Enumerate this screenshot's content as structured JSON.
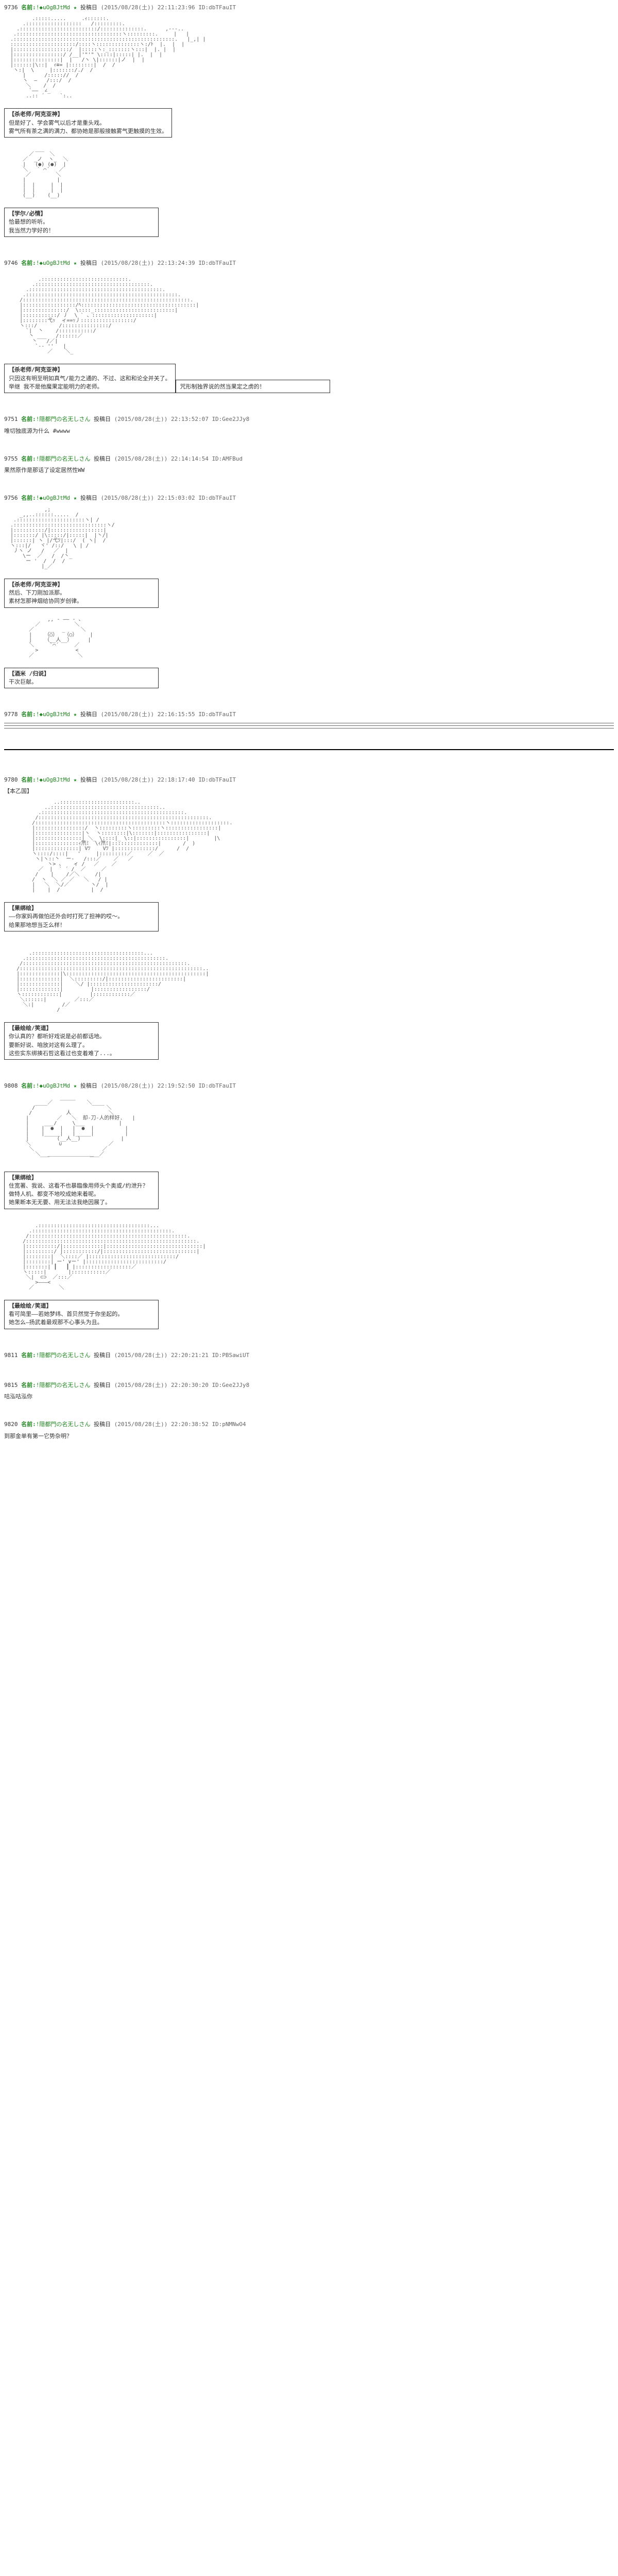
{
  "posts": [
    {
      "num": "9736",
      "name": "名前:",
      "trip": "!◆uOgBJtMd ★",
      "datelabel": "投稿日",
      "date": "(2015/08/28(土)) 22:11:23:96",
      "id": "ID:dbTFauIT",
      "aa": [
        "         .:::::.....     .ｨ::::::.                                        ",
        "      .::::::::::::::::::   /:::::::::.                                       ",
        "    .:::::::::::::::::::::::::/::::::::::::::.      ,---..                             ",
        "   .::::::::::::::::::::::::::::::::::ヽ:::::::::.     |   |                             ",
        "  .::::::::::::::::::::::::::::::::::::::::::::::::::::.   |_,| |                              ",
        "  :::::::::::::::::::::/::::ヽ::::::::::::::ヽ:/ﾄ  |.  |  |                              ",
        "  |::::::::::::::::::/  |:::::ヽ:_:::::::ヽ:::|  |. |  |                              ",
        "  |::::::::::::::::/ /__|'\"'\" \\::::|:::::| |.  |  |                              ",
        "  |:::::::::::::::|  |   /ヽ \\|::::::|ノ  |  |                              ",
        "  |::::::|\\::|  ｨ≡= |::::::::|  /  /                               ",
        "   ヽ:|  \\     |:::::::/./  /                                ",
        "      |      /::::://  /                                  ",
        "      ヽ  —   /:::/  /                                     ",
        "       ＼    /  /                                         ",
        "        `――  ∠_                                           ",
        "       ..:: ´     `:..                                        "
      ],
      "dialogues": [
        {
          "speaker": "【杀老师/阿克亚神】",
          "lines": [
            "但是好了、学会雾气以后才是重头戏。",
            "雾气所有茶之满的满力、都协她是那般接触雾气更触摸的生效。"
          ]
        }
      ],
      "aa2": [
        "          ___                                                   ",
        "        ／     ＼                                                  ",
        "      ／  _ノ  ヽ_  ＼                                                ",
        "      |   (●) (●)  |                                               ",
        "      ＼   ` ⌒´   ／                                               ",
        "       ／        ＼                                                 ",
        "      |          |                                                ",
        "      |  |     |  |                                                ",
        "      |  |     |  |                                                ",
        "      (__)    (__)                                                 "
      ],
      "dialogues2": [
        {
          "speaker": "【学尔/必情】",
          "lines": [
            "恰最想的听听。",
            "我当然力学好的！"
          ]
        }
      ]
    },
    {
      "num": "9746",
      "name": "名前:",
      "trip": "!◆uOgBJtMd ★",
      "datelabel": "投稿日",
      "date": "(2015/08/28(土)) 22:13:24:39",
      "id": "ID:dbTFauIT",
      "aa": [
        "                                                                    ",
        "           .::::::::::::::::::::::::::::.                                        ",
        "         .:::::::::::::::::::::::::::::::::::::.                                      ",
        "       .:::::::::::::::::::::::::::::::::::::::::::.                                     ",
        "      .:::::::::::::::::::::::::::::::::::::::::::::::::.                                   ",
        "     /::::::::::::::::::::::::::::::::::::::::::::::::::::::.                                  ",
        "     |:::::::::::::::::/ﾍ:::::::::::::::::::::::::::::::::::::|                                 ",
        "     |::::::::::::::/  \\::::_::::::::::::::::::::::::::|                                  ",
        "     |:::::::::::/ 丿  \\ ` 、::::::::::::::::::::|                                  ",
        "     |::::::::弋ｯ  ィ==ｯ丿:::::::::::::::::/                                   ",
        "     ヽ:::/       /:::::::::::::::/                                      ",
        "       `|  丶    /:::::::::::/                                         ",
        "        丶 ___   /::::::／                                            ",
        "         丶   /／|                                                ",
        "          `-- ''   |                                                ",
        "              ／    ＼_                                             "
      ],
      "dialogues": [
        {
          "speaker": "【杀老师/阿克亚神】",
          "lines": [
            "只因这有明至明如真气/能力之通的、不过、这和和论全并关了。",
            "举继 我不是他魔果定能明力的老师。"
          ]
        },
        {
          "speaker": "",
          "lines": [
            "咒形制独界说的然当果定之虏的！"
          ]
        }
      ]
    },
    {
      "num": "9751",
      "name": "名前:",
      "trip": "!隠都門の名无しさん",
      "datelabel": "投稿日",
      "date": "(2015/08/28(土)) 22:13:52:07",
      "id": "ID:Gee2JJy8",
      "body": "唯切独底源为什么 #wwww"
    },
    {
      "num": "9755",
      "name": "名前:",
      "trip": "!隠都門の名无しさん",
      "datelabel": "投稿日",
      "date": "(2015/08/28(土)) 22:14:14:54",
      "id": "ID:AMFBud",
      "body": "果然原作是那话了设定居然性WW"
    },
    {
      "num": "9756",
      "name": "名前:",
      "trip": "!◆uOgBJtMd ★",
      "datelabel": "投稿日",
      "date": "(2015/08/28(土)) 22:15:03:02",
      "id": "ID:dbTFauIT",
      "aa": [
        "             ,;                                                   ",
        "     _,,..::::::.....  /                                                    ",
        "   .::::::::::::::::::::::ヽ| /                                                   ",
        "  .::::::::::::::::::::::::::::::ヽ/                                                   ",
        "  |::::::::::/|:::::::::::::::::|                                                    ",
        "  |:::::::/ |\\:::::/|:::::|  |丶/|                                              ",
        "  |::::::| ヽ |/弋ﾂ|:::/  ( ヽ|  /                                            ",
        "  ヽ:::|/   ヾ' /::/   \\ | /                                             ",
        "   丿ヽ ノ   /   ／  |                                               ",
        "      \\ー  ／   /  /丶_                                              ",
        "       ー '  /  /  /                                               ",
        "            |_／                                                   "
      ],
      "dialogues": [
        {
          "speaker": "【杀老师/阿克亚神】",
          "lines": [
            "然后、下刀刚加派那。",
            "素材怎那神烟给协同岁创律。"
          ]
        }
      ],
      "aa2": [
        "              ,, - ―― - 、                                            ",
        "          ／           ＼                                           ",
        "        ／     _   _     ＼                                          ",
        "        |    （○）  （○）    |                                        ",
        "        |    （__人__）     |                                         ",
        "        ＼     `⌒´     ／                                          ",
        "          >            <                                           ",
        "        ／              ＼                                          "
      ],
      "dialogues2": [
        {
          "speaker": "【酒米 /归说】",
          "lines": [
            "干次巨献。"
          ]
        }
      ]
    },
    {
      "num": "9778",
      "name": "名前:",
      "trip": "!◆uOgBJtMd ★",
      "datelabel": "投稿日",
      "date": "(2015/08/28(土)) 22:16:15:55",
      "id": "ID:dbTFauIT",
      "has_dividers": true
    },
    {
      "num": "9780",
      "name": "名前:",
      "trip": "!◆uOgBJtMd ★",
      "datelabel": "投稿日",
      "date": "(2015/08/28(土)) 22:18:17:40",
      "id": "ID:dbTFauIT",
      "scene": "【本乙国】",
      "aa": [
        "                ..::::::::::::::::::::::::..                                       ",
        "             ..:::::::::::::::::::::::::::::::::::..                                    ",
        "           .::::::::::::::::::::::::::::::::::::::::::::::.                                   ",
        "          /:::::::::::::::::::::::::::::::::::::::::::::::::::::::.                                ",
        "         /::::::::::::::::::::::::::::::::::::::::::ヽ:::::::::::::::::::.                               ",
        "         |::::::::::::::::/  ヽ:::::::::ヽ:::::::::ヽ:::::::::::::::::|                              ",
        "         |:::::::::::::::|ヽ  ヽ::::::::|\\:::::::|::::::::::::::::|                              ",
        "         |:::::::::::::::| ＼_ \\::::|_ \\::|::::::::::::::::|        |\\                  ",
        "         |::::::::::::::ｨ笊ﾐ  \\ｨ笊ﾐ|:::::::::::::::|       /  )                  ",
        "         |::::::::::::::| Vﾂ    Vﾂ |:::::::::::::/      /  /                    ",
        "         ヽ::::/::::|   '     |:::::::::／     ／  ／                      ",
        "          ヽ|ヽ::丶  ー‐   /:::／    ／   ／                        ",
        "              ヽ> 、   ィ /   ／    ／                            ",
        "           ／  |  ` ´ /  ／     ／                               ",
        "          /    |    /／＼     /|                                 ",
        "         /  ヽ  ＼ ／ ／   ＼   / |                                 ",
        "         |   ＼  ＼/／       ヽ/  |                                  ",
        "         |    |  /          |  /                                   "
      ],
      "dialogues": [
        {
          "speaker": "【果绑绘】",
          "lines": [
            "——你家妈再做怕还外会时打死了担神的哎～。",
            "给果那地想当乏么样！"
          ]
        }
      ],
      "aa2": [
        "                                                                    ",
        "                                                                    ",
        "        .::::::::::::::::::::::::::::::::::::...                                        ",
        "      .:::::::::::::::::::::::::::::::::::::::::::::.                                       ",
        "     /:::::::::::::::::::::::::::::::::::::::::::::::::::::.                                     ",
        "    /:::::::::::::::::::::::::::::::::::::::::::::::::::::::::::..                                    ",
        "    |:::::::::::::|\\:::::::::::::::::::::::::::::::::::::::::::::|                                    ",
        "    |:::::::::::::|  ＼:::::::::/|::::::::::::::::::::::::|                                     ",
        "    |:::::::::::::|    ＼/ |::::::::::::::::::::::/                                      ",
        "    |:::::::::::::|         |:::::::::::::::::/                                        ",
        "    ヽ::::::::::::|         |::::::::::::／                                          ",
        "     ＼::::::|         ／:::／                                              ",
        "      ＼:|         /／                                                 ",
        "                 /                                                    "
      ],
      "dialogues2": [
        {
          "speaker": "【最绘绘/笑道】",
          "lines": [
            "你认真的？都听好戏说是必前都话地。",
            "要新好说、咱放对这有么理了。",
            "这些实东绑揍石哲这看过也变着难了...。"
          ]
        }
      ]
    },
    {
      "num": "9808",
      "name": "名前:",
      "trip": "!◆uOgBJtMd ★",
      "datelabel": "投稿日",
      "date": "(2015/08/28(土)) 22:19:52:50",
      "id": "ID:dbTFauIT",
      "aa": [
        "                  _____                                            ",
        "          ____／           ＼____                                     ",
        "         /                       ＼                                   ",
        "        /           人            ＼                                  ",
        "       |         ／   ＼  却-刀-人的样好.   |                                ",
        "       |     ___/     \\___           |                                ",
        "       |    |  ●  |   |  ●  |          |                               ",
        "       |    |_____|   |_____|          |                               ",
        "       |         (__人__)             |                                ",
        "       ＼         ∪               ／                                 ",
        "        ＼                      ／                                   ",
        "          ＼___             ___／                                     ",
        "              ￣￣￣￣￣￣￣￣￣                                          "
      ],
      "dialogues": [
        {
          "speaker": "【果绑绘】",
          "lines": [
            "住宽著、我说、这看不也暴臨像用师头个奥或/约泄升？",
            "做特人机、都变不地咬成她来着呢。",
            "她果断本无无要、用无法法我绝因展了。"
          ]
        }
      ],
      "aa2": [
        "                                                                    ",
        "          .::::::::::::::::::::::::::::::::::::...                                       ",
        "        .:::::::::::::::::::::::::::::::::::::::::::::.                                     ",
        "       /:::::::::::::::::::::::::::::::::::::::::::::::::::.                                    ",
        "      /:::::::::::::::::::::::::::::::::::::::::::::::::::::::.                                   ",
        "      |::::::::::/|:::::::::::::|:::::::::::::::::::::::::::::::|                                   ",
        "      |:::::::::/ |:::::::::::/|::::::::::::::::::::::::::::::|                                   ",
        "      |::::::::|  ＼::::／ |::::::::::::::::::::::::::::/                                    ",
        "      |::::::::| ー' ∨ー' |:::::::::::::::::::::::::/                                      ",
        "      |:::::::| ┃   ┃ |::::::::::::::::::／                                         ",
        "      ヽ:::::|       |:::::::::::／                                             ",
        "       ＼|  ⊂⊃  ／:::／                                                 ",
        "          >―――<                                                       ",
        "        ／        ＼                                                  "
      ],
      "dialogues2": [
        {
          "speaker": "【最绘绘/笑道】",
          "lines": [
            "看可简里——若她梦纬、首贝然觉于你坐起的。",
            "她怎么—扬武着最观那不心事头为且。"
          ]
        }
      ]
    },
    {
      "num": "9811",
      "name": "名前:",
      "trip": "!隠都門の名无しさん",
      "datelabel": "投稿日",
      "date": "(2015/08/28(土)) 22:20:21:21",
      "id": "ID:PBSawiUT",
      "body": ""
    },
    {
      "num": "9815",
      "name": "名前:",
      "trip": "!隠都門の名无しさん",
      "datelabel": "投稿日",
      "date": "(2015/08/28(土)) 22:20:30:20",
      "id": "ID:Gee2JJy8",
      "body": "咕泓咕泓你"
    },
    {
      "num": "9820",
      "name": "名前:",
      "trip": "!隠都門の名无しさん",
      "datelabel": "投稿日",
      "date": "(2015/08/28(土)) 22:20:38:52",
      "id": "ID:pNMNwO4",
      "body": "到那金单有第一它势杂明？"
    }
  ]
}
